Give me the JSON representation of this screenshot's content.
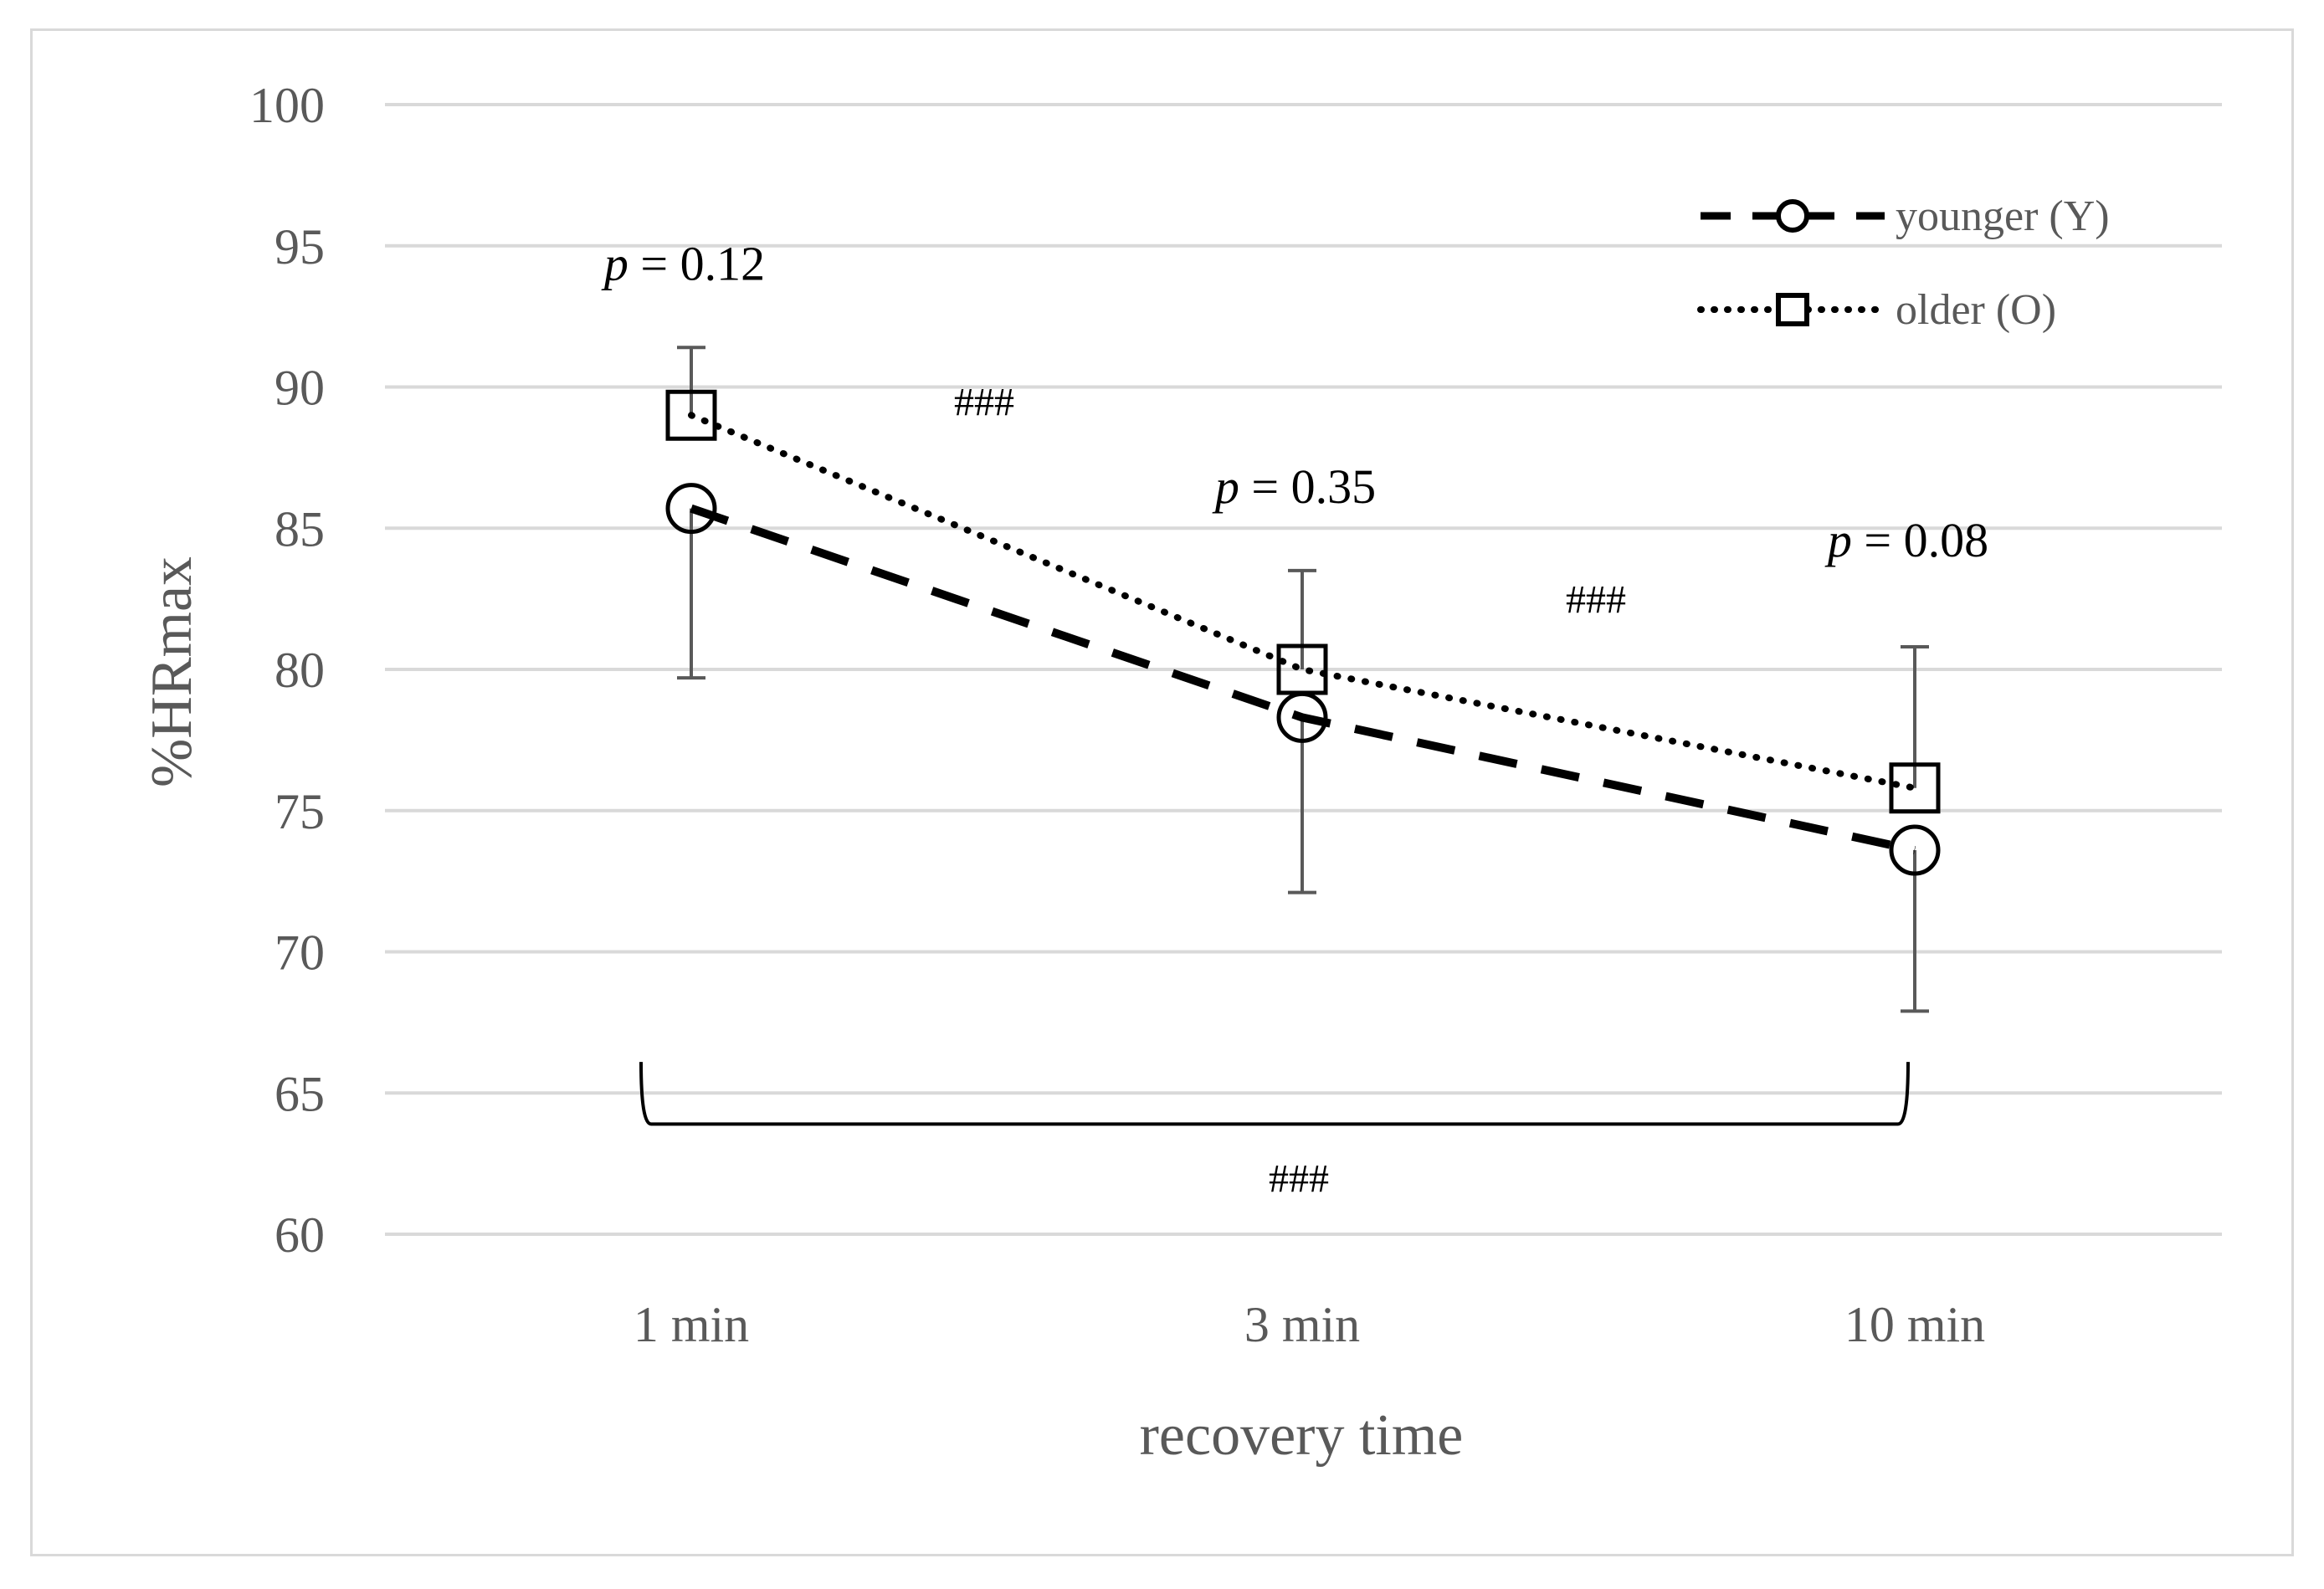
{
  "chart_data": {
    "type": "line",
    "title": "",
    "xlabel": "recovery time",
    "ylabel": "%HRmax",
    "categories": [
      "1 min",
      "3 min",
      "10 min"
    ],
    "ylim": [
      60,
      100
    ],
    "yticks": [
      60,
      65,
      70,
      75,
      80,
      85,
      90,
      95,
      100
    ],
    "grid": true,
    "legend_position": "top-right",
    "series": [
      {
        "name": "younger (Y)",
        "line_style": "dashed",
        "marker": "circle",
        "color": "#000000",
        "values": [
          85.7,
          78.3,
          73.6
        ],
        "error_low": [
          79.7,
          72.1,
          67.9
        ]
      },
      {
        "name": "older (O)",
        "line_style": "dotted",
        "marker": "square",
        "color": "#000000",
        "values": [
          89.0,
          80.0,
          75.8
        ],
        "error_high": [
          91.4,
          83.5,
          80.8
        ]
      }
    ],
    "p_values": [
      {
        "category": "1 min",
        "label_prefix": "p",
        "label_rest": " = 0.12",
        "y": 93.8
      },
      {
        "category": "3 min",
        "label_prefix": "p",
        "label_rest": " = 0.35",
        "y": 85.9
      },
      {
        "category": "10 min",
        "label_prefix": "p",
        "label_rest": " = 0.08",
        "y": 84.0
      }
    ],
    "annotations": [
      {
        "text": "###",
        "between": [
          "1 min",
          "3 min"
        ],
        "y": 89.0
      },
      {
        "text": "###",
        "between": [
          "3 min",
          "10 min"
        ],
        "y": 82.0
      },
      {
        "text": "###",
        "between": [
          "1 min",
          "10 min"
        ],
        "y": 61.5
      }
    ],
    "bracket": {
      "from": "1 min",
      "to": "10 min",
      "y": 63.9,
      "top": 66.1
    }
  }
}
